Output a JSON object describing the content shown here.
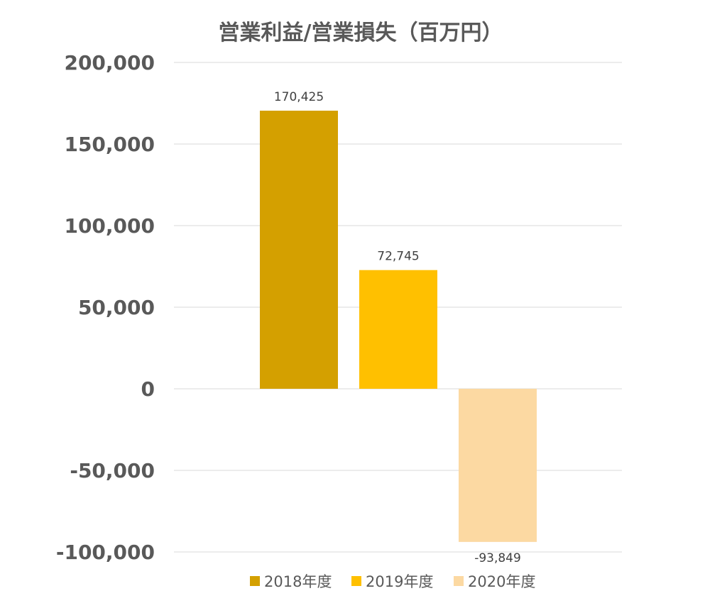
{
  "chart_data": {
    "type": "bar",
    "title": "営業利益/営業損失（百万円）",
    "xlabel": "",
    "ylabel": "",
    "ylim": [
      -100000,
      200000
    ],
    "yticks": [
      200000,
      150000,
      100000,
      50000,
      0,
      -50000,
      -100000
    ],
    "ytick_labels": [
      "200,000",
      "150,000",
      "100,000",
      "50,000",
      "0",
      "-50,000",
      "-100,000"
    ],
    "grid": true,
    "legend_position": "bottom",
    "series": [
      {
        "name": "2018年度",
        "values": [
          170425
        ],
        "label": "170,425",
        "color": "#d4a000"
      },
      {
        "name": "2019年度",
        "values": [
          72745
        ],
        "label": "72,745",
        "color": "#ffc000"
      },
      {
        "name": "2020年度",
        "values": [
          -93849
        ],
        "label": "-93,849",
        "color": "#fcd9a2"
      }
    ]
  }
}
